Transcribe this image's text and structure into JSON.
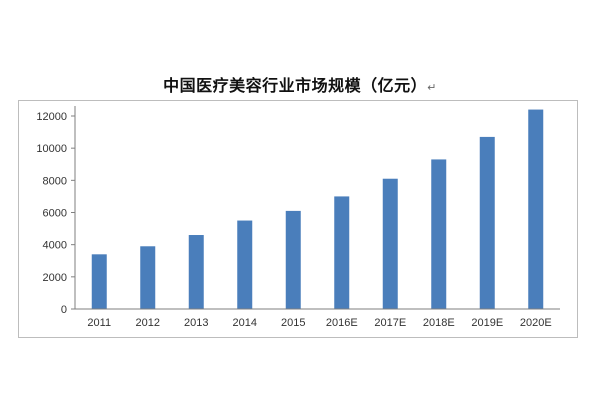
{
  "chart_data": {
    "type": "bar",
    "title": "中国医疗美容行业市场规模（亿元）",
    "title_mark": "↵",
    "categories": [
      "2011",
      "2012",
      "2013",
      "2014",
      "2015",
      "2016E",
      "2017E",
      "2018E",
      "2019E",
      "2020E"
    ],
    "values": [
      3400,
      3900,
      4600,
      5500,
      6100,
      7000,
      8100,
      9300,
      10700,
      12400
    ],
    "ylim": [
      0,
      12000
    ],
    "yticks": [
      "0",
      "2000",
      "4000",
      "6000",
      "8000",
      "10000",
      "12000"
    ],
    "xlabel": "",
    "ylabel": "",
    "grid": false,
    "colors": {
      "bar": "#4a7ebb",
      "axis": "#7f7f7f"
    }
  }
}
